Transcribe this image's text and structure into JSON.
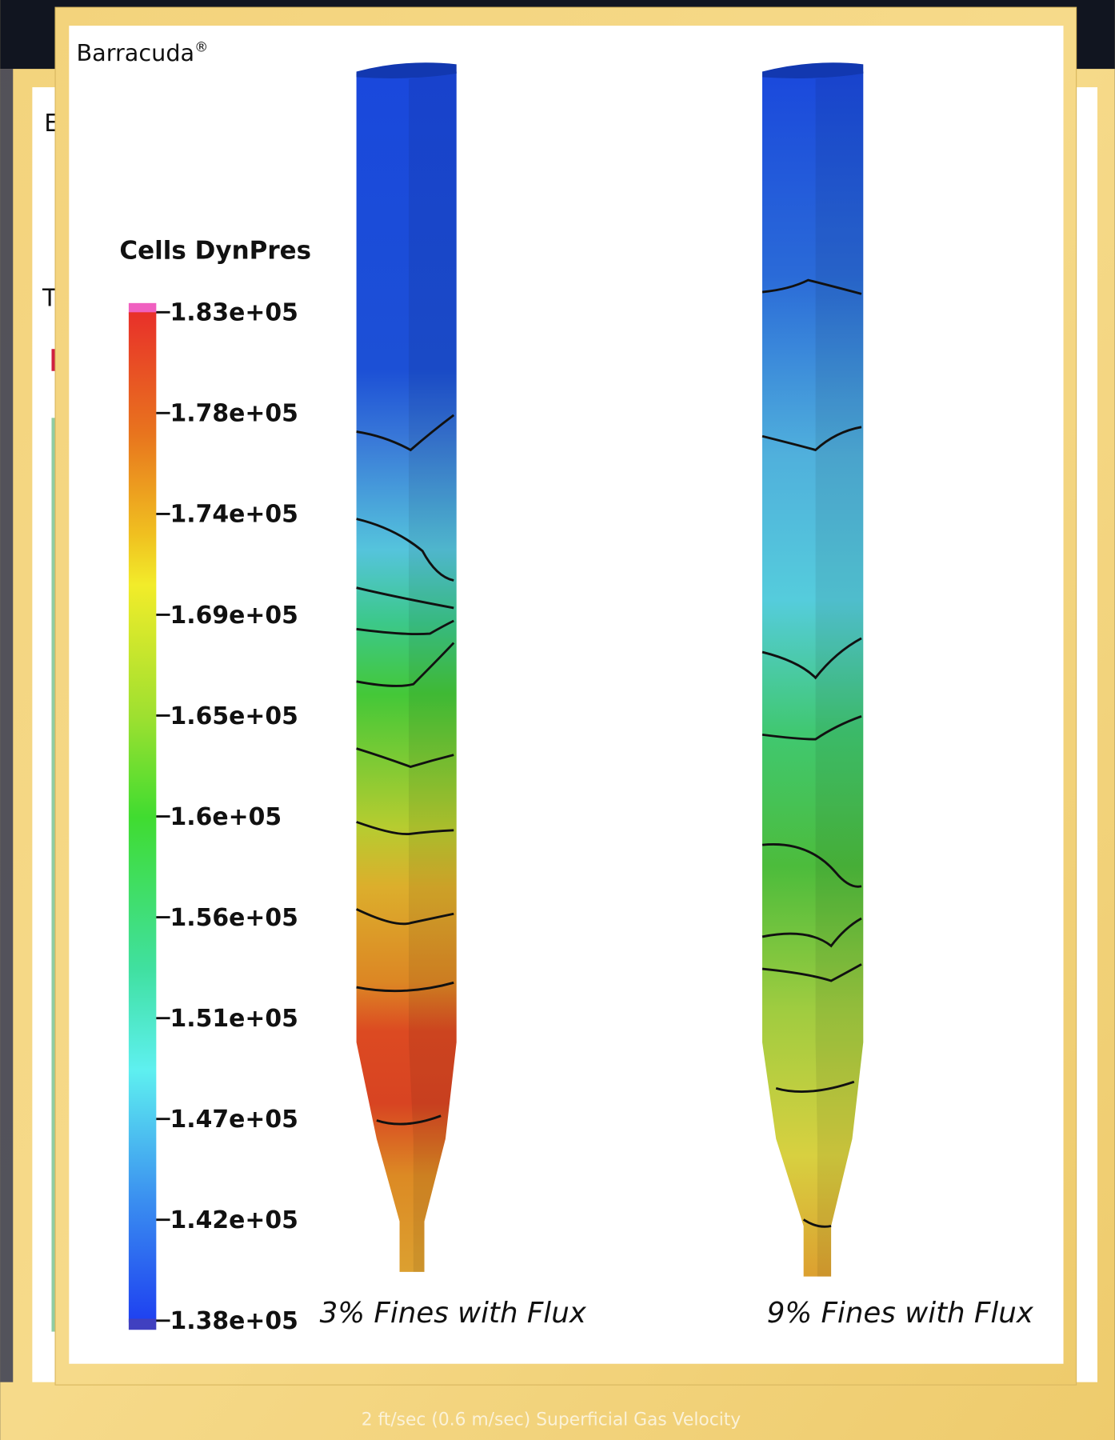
{
  "brand": "Barracuda",
  "brand_mark": "®",
  "background_fragments": [
    "E",
    "T"
  ],
  "legend": {
    "title": "Cells DynPres",
    "ticks": [
      "1.83e+05",
      "1.78e+05",
      "1.74e+05",
      "1.69e+05",
      "1.65e+05",
      "1.6e+05",
      "1.56e+05",
      "1.51e+05",
      "1.47e+05",
      "1.42e+05",
      "1.38e+05"
    ]
  },
  "panels": [
    {
      "caption": "3% Fines with Flux"
    },
    {
      "caption": "9% Fines with Flux"
    }
  ],
  "footer": "2 ft/sec (0.6 m/sec) Superficial Gas Velocity"
}
